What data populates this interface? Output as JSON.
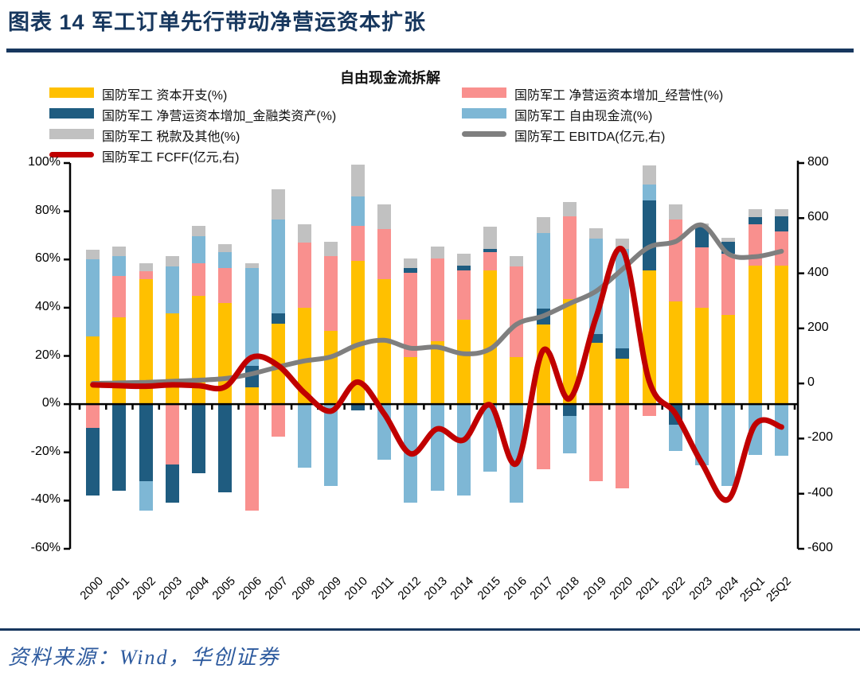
{
  "page": {
    "title": "图表 14 军工订单先行带动净营运资本扩张",
    "source_label": "资料来源：Wind，华创证券",
    "accent_color": "#17375E",
    "source_color": "#2D5A9E"
  },
  "chart": {
    "title": "自由现金流拆解",
    "legend": [
      {
        "key": "capex",
        "label": "国防军工 资本开支(%)",
        "color": "#FFC000",
        "swatch": "box",
        "col": 1,
        "row": 1
      },
      {
        "key": "wc-operating",
        "label": "国防军工 净营运资本增加_经营性(%)",
        "color": "#F9908E",
        "swatch": "box",
        "col": 2,
        "row": 1
      },
      {
        "key": "wc-financial",
        "label": "国防军工 净营运资本增加_金融类资产(%)",
        "color": "#1F5C80",
        "swatch": "box",
        "col": 1,
        "row": 2
      },
      {
        "key": "fcf",
        "label": "国防军工 自由现金流(%)",
        "color": "#7EB7D5",
        "swatch": "box",
        "col": 2,
        "row": 2
      },
      {
        "key": "tax",
        "label": "国防军工 税款及其他(%)",
        "color": "#C1C1C1",
        "swatch": "box",
        "col": 1,
        "row": 3
      },
      {
        "key": "ebitda",
        "label": "国防军工 EBITDA(亿元,右)",
        "color": "#7F7F7F",
        "swatch": "line",
        "col": 2,
        "row": 3
      },
      {
        "key": "fcff",
        "label": "国防军工 FCFF(亿元,右)",
        "color": "#C00000",
        "swatch": "line",
        "col": 1,
        "row": 4
      }
    ],
    "left_axis": {
      "ticks": [
        {
          "label": "100%",
          "value": 100
        },
        {
          "label": "80%",
          "value": 80
        },
        {
          "label": "60%",
          "value": 60
        },
        {
          "label": "40%",
          "value": 40
        },
        {
          "label": "20%",
          "value": 20
        },
        {
          "label": "0%",
          "value": 0
        },
        {
          "label": "-20%",
          "value": -20
        },
        {
          "label": "-40%",
          "value": -40
        },
        {
          "label": "-60%",
          "value": -60
        }
      ],
      "min": -60,
      "max": 100
    },
    "right_axis": {
      "ticks": [
        {
          "label": "800",
          "value": 800
        },
        {
          "label": "600",
          "value": 600
        },
        {
          "label": "400",
          "value": 400
        },
        {
          "label": "200",
          "value": 200
        },
        {
          "label": "0",
          "value": 0
        },
        {
          "label": "-200",
          "value": -200
        },
        {
          "label": "-400",
          "value": -400
        },
        {
          "label": "-600",
          "value": -600
        }
      ],
      "min": -600,
      "max": 800
    },
    "chart_data": {
      "type": "bar",
      "subtype": "stacked-bars-with-two-lines",
      "title": "自由现金流拆解",
      "categories": [
        "2000",
        "2001",
        "2002",
        "2003",
        "2004",
        "2005",
        "2006",
        "2007",
        "2008",
        "2009",
        "2010",
        "2011",
        "2012",
        "2013",
        "2014",
        "2015",
        "2016",
        "2017",
        "2018",
        "2019",
        "2020",
        "2021",
        "2022",
        "2023",
        "2024",
        "25Q1",
        "25Q2"
      ],
      "left_axis_unit": "%",
      "right_axis_unit": "亿元",
      "grid": false,
      "legend_position": "top",
      "stack_series": [
        {
          "name": "国防军工 资本开支(%)",
          "key": "capex",
          "color": "#FFC000",
          "values": [
            28,
            36,
            52,
            37.5,
            45,
            42,
            7,
            33.5,
            40,
            30.5,
            59.5,
            52,
            19.5,
            26,
            35,
            55.5,
            19.5,
            33,
            43.5,
            25.5,
            19,
            55.5,
            42.5,
            40,
            37,
            57.5,
            57.5
          ]
        },
        {
          "name": "国防军工 净营运资本增加_经营性(%)",
          "key": "wc-operating",
          "color": "#F9908E",
          "values": [
            -10,
            17,
            3,
            -25,
            13.5,
            14.5,
            -44,
            -13.5,
            27,
            31,
            14.5,
            20.5,
            35,
            34.5,
            20.5,
            7.5,
            37.5,
            -27,
            34.5,
            -32,
            -35,
            -5,
            34,
            25,
            25.5,
            17,
            14
          ]
        },
        {
          "name": "国防军工 净营运资本增加_金融类资产(%)",
          "key": "wc-financial",
          "color": "#1F5C80",
          "values": [
            -28,
            -36,
            -32,
            -16,
            -28.5,
            -36.5,
            9,
            4,
            0,
            0,
            -2.5,
            0,
            2,
            0,
            2,
            1.5,
            0,
            6.5,
            -5,
            3.5,
            4,
            29,
            -8.5,
            8.5,
            5,
            3,
            6.5
          ]
        },
        {
          "name": "国防军工 自由现金流(%)",
          "key": "fcf",
          "color": "#7EB7D5",
          "values": [
            32,
            8.5,
            -12,
            19.5,
            11,
            6.5,
            40.5,
            39,
            -26.5,
            -34,
            12,
            -23,
            -41,
            -36,
            -38,
            -28,
            -41,
            31.5,
            -15.5,
            39.5,
            41.5,
            6.5,
            -11,
            -25.5,
            -34,
            -21,
            -21.5
          ]
        },
        {
          "name": "国防军工 税款及其他(%)",
          "key": "tax",
          "color": "#C1C1C1",
          "values": [
            4,
            4,
            3.5,
            4.5,
            4.5,
            3.5,
            2,
            12.5,
            7.5,
            6,
            13.5,
            10.5,
            4,
            5,
            5,
            9,
            4.5,
            6.5,
            6,
            4.5,
            4,
            8,
            6.5,
            1.5,
            1.5,
            3.5,
            3
          ]
        }
      ],
      "line_series": [
        {
          "name": "国防军工 EBITDA(亿元,右)",
          "key": "ebitda",
          "axis": "right",
          "color": "#7F7F7F",
          "width": 6,
          "values": [
            0,
            2,
            4,
            8,
            12,
            18,
            35,
            60,
            82,
            97,
            140,
            157,
            128,
            132,
            108,
            125,
            215,
            245,
            290,
            335,
            415,
            495,
            515,
            575,
            470,
            460,
            480
          ]
        },
        {
          "name": "国防军工 FCFF(亿元,右)",
          "key": "fcff",
          "axis": "right",
          "color": "#C00000",
          "width": 7,
          "values": [
            -5,
            -8,
            -10,
            -5,
            -8,
            -12,
            95,
            65,
            -35,
            -100,
            5,
            -110,
            -255,
            -165,
            -205,
            -78,
            -290,
            120,
            -55,
            240,
            485,
            10,
            -110,
            -290,
            -420,
            -150,
            -158
          ]
        }
      ]
    }
  }
}
